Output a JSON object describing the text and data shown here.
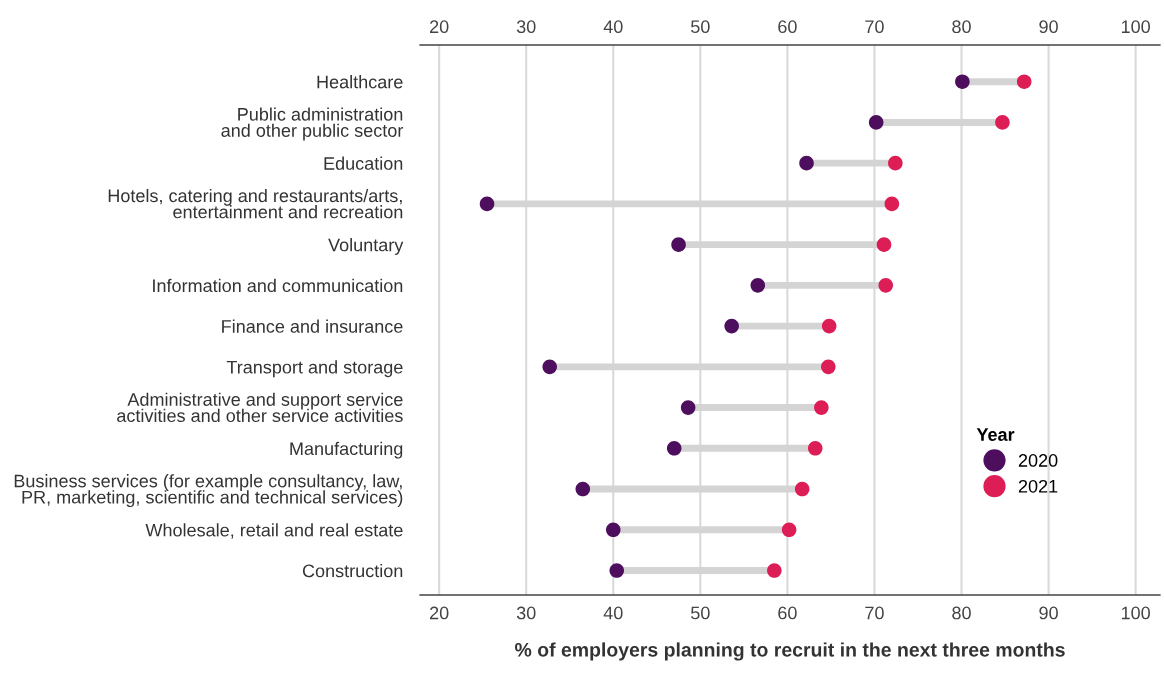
{
  "chart_data": {
    "type": "lollipop",
    "orientation": "horizontal",
    "xlabel": "% of employers planning to recruit in the next three months",
    "categories": [
      "Healthcare",
      "Public administration\nand other public sector",
      "Education",
      "Hotels, catering and restaurants/arts,\nentertainment and recreation",
      "Voluntary",
      "Information and communication",
      "Finance and insurance",
      "Transport and storage",
      "Administrative and support service\nactivities and other service activities",
      "Manufacturing",
      "Business services (for example consultancy, law,\nPR, marketing, scientific and technical services)",
      "Wholesale, retail and real estate",
      "Construction"
    ],
    "series": [
      {
        "name": "2020",
        "color": "#4e0e5e",
        "values": [
          80.1,
          70.2,
          62.2,
          25.5,
          47.5,
          56.6,
          53.6,
          32.7,
          48.6,
          47.0,
          36.5,
          40.0,
          40.4
        ]
      },
      {
        "name": "2021",
        "color": "#dc1d56",
        "values": [
          87.2,
          84.7,
          72.4,
          72.0,
          71.1,
          71.3,
          64.8,
          64.7,
          63.9,
          63.2,
          61.7,
          60.2,
          58.5
        ]
      }
    ],
    "legend_title": "Year",
    "legend": "right",
    "grid": "x",
    "marker": "circle",
    "xlim": [
      17.8,
      102.8
    ],
    "xticks": [
      20,
      30,
      40,
      50,
      60,
      70,
      80,
      90,
      100
    ],
    "x2lim": [
      17.8,
      102.8
    ],
    "x2ticks": [
      20,
      30,
      40,
      50,
      60,
      70,
      80,
      90,
      100
    ]
  }
}
